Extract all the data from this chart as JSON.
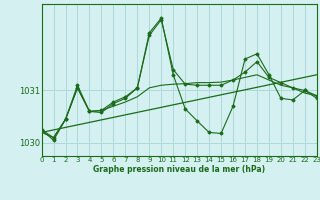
{
  "title": "Graphe pression niveau de la mer (hPa)",
  "background_color": "#d4f0f0",
  "grid_color": "#aed8d8",
  "line_color": "#1a6b1a",
  "x_min": 0,
  "x_max": 23,
  "y_min": 1029.75,
  "y_max": 1032.65,
  "y_ticks": [
    1030,
    1031
  ],
  "x_ticks": [
    0,
    1,
    2,
    3,
    4,
    5,
    6,
    7,
    8,
    9,
    10,
    11,
    12,
    13,
    14,
    15,
    16,
    17,
    18,
    19,
    20,
    21,
    22,
    23
  ],
  "series1": [
    1030.2,
    1030.1,
    1030.45,
    1031.05,
    1030.6,
    1030.62,
    1030.7,
    1030.78,
    1030.88,
    1031.05,
    1031.1,
    1031.12,
    1031.13,
    1031.15,
    1031.15,
    1031.16,
    1031.2,
    1031.25,
    1031.3,
    1031.2,
    1031.1,
    1031.05,
    1030.95,
    1030.9
  ],
  "series2_x": [
    0,
    1,
    2,
    3,
    4,
    5,
    6,
    7,
    8,
    9,
    10,
    11,
    12,
    13,
    14,
    15,
    16,
    17,
    18,
    19,
    20,
    21,
    22,
    23
  ],
  "series2": [
    1030.25,
    1030.1,
    1030.45,
    1031.05,
    1030.6,
    1030.62,
    1030.78,
    1030.88,
    1031.05,
    1032.05,
    1032.35,
    1031.4,
    1031.12,
    1031.1,
    1031.1,
    1031.1,
    1031.2,
    1031.35,
    1031.55,
    1031.25,
    1031.15,
    1031.05,
    1031.0,
    1030.9
  ],
  "series3_x": [
    0,
    1,
    2,
    3,
    4,
    5,
    6,
    7,
    8,
    9,
    10,
    11,
    12,
    13,
    14,
    15,
    16,
    17,
    18,
    19,
    20,
    21,
    22,
    23
  ],
  "series3": [
    1030.25,
    1030.05,
    1030.45,
    1031.1,
    1030.6,
    1030.58,
    1030.75,
    1030.85,
    1031.05,
    1032.1,
    1032.38,
    1031.3,
    1030.65,
    1030.42,
    1030.2,
    1030.18,
    1030.7,
    1031.6,
    1031.7,
    1031.3,
    1030.85,
    1030.82,
    1031.0,
    1030.85
  ],
  "trend_x": [
    0,
    23
  ],
  "trend_y": [
    1030.2,
    1031.3
  ]
}
